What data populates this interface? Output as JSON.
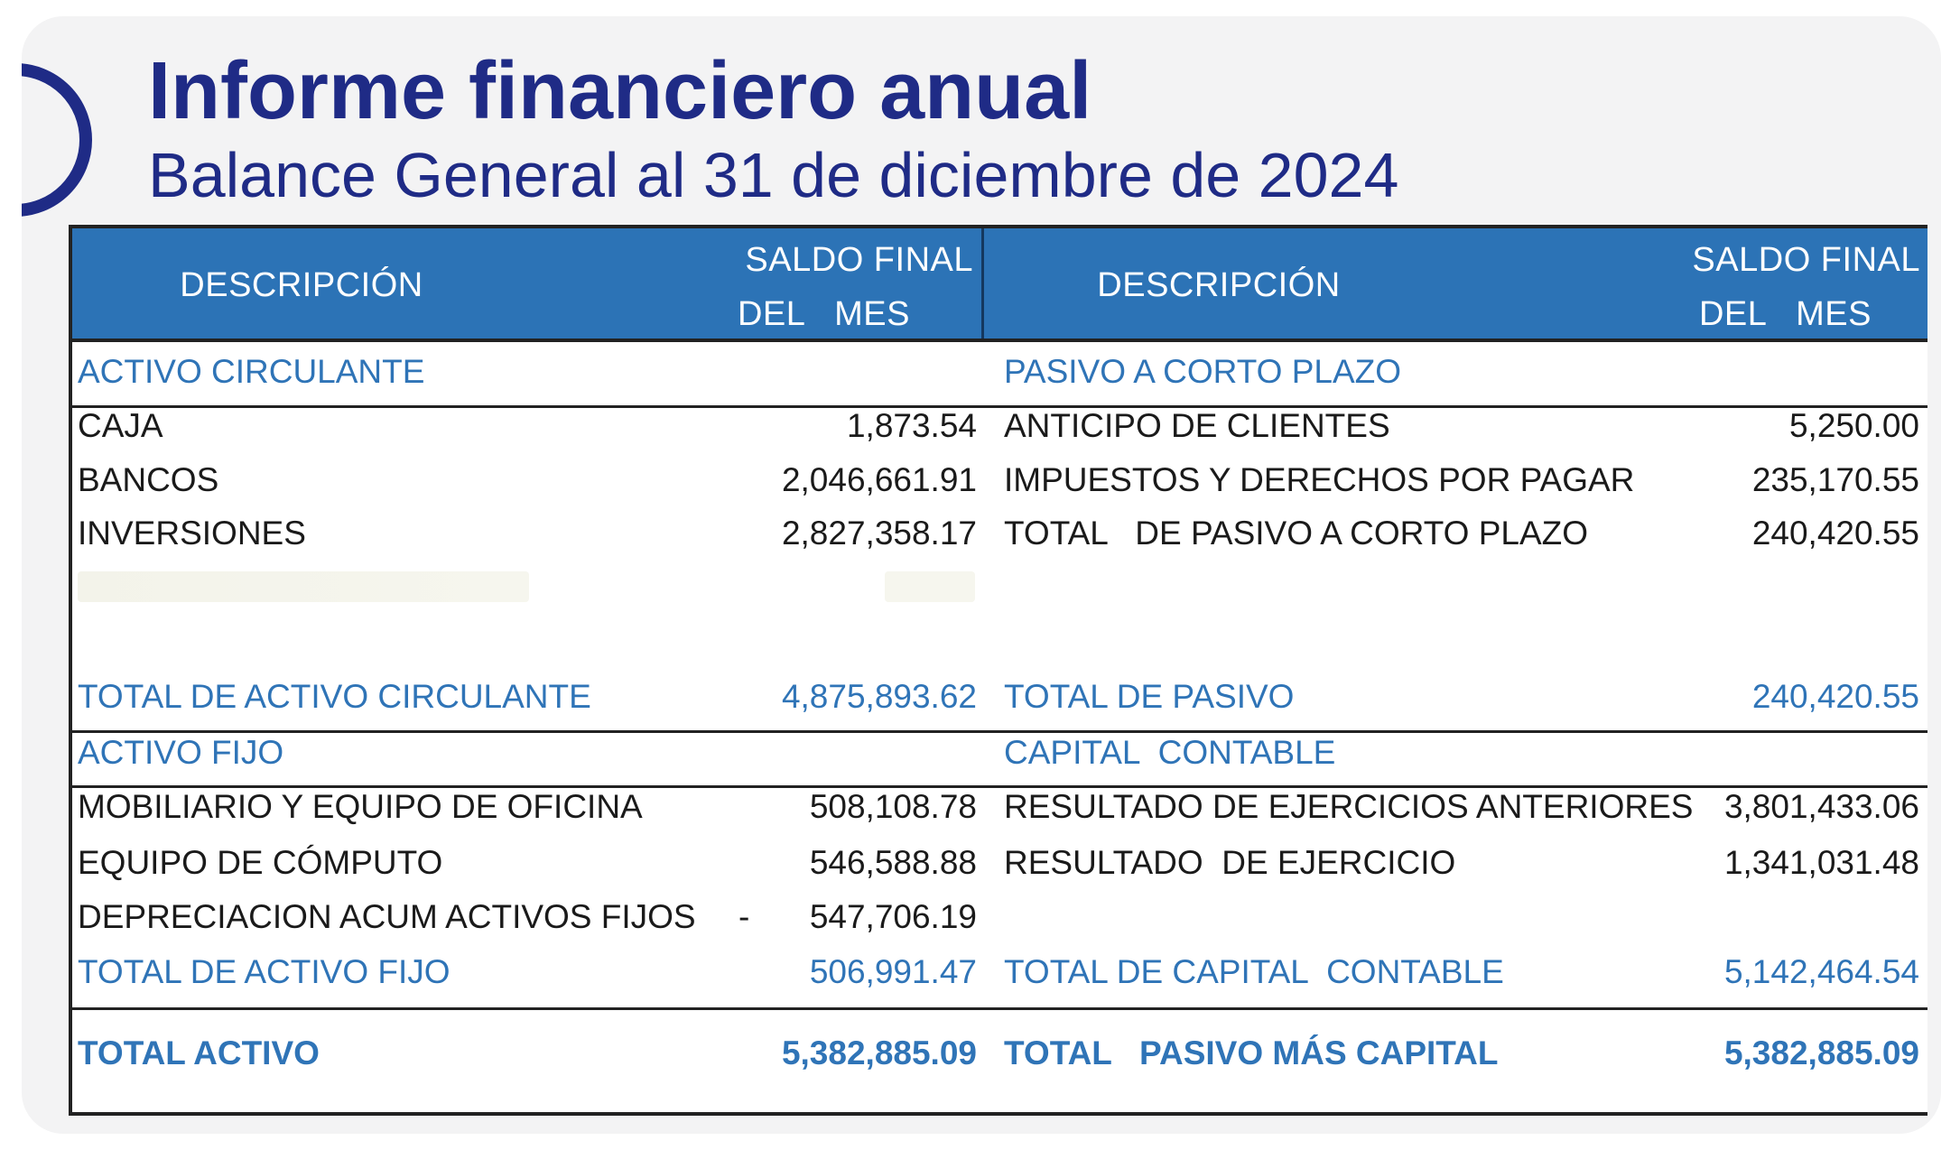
{
  "title": "Informe financiero anual",
  "subtitle": "Balance General al 31 de diciembre de 2024",
  "header": {
    "desc_left": "DESCRIPCIÓN",
    "saldo_left_1": "SALDO FINAL",
    "saldo_left_2": "DEL   MES",
    "desc_right": "DESCRIPCIÓN",
    "saldo_right_1": "SALDO FINAL",
    "saldo_right_2": "DEL   MES"
  },
  "left": {
    "section_circulante": "ACTIVO CIRCULANTE",
    "rows_circulante": [
      {
        "label": "CAJA",
        "value": "1,873.54"
      },
      {
        "label": "BANCOS",
        "value": "2,046,661.91"
      },
      {
        "label": "INVERSIONES",
        "value": "2,827,358.17"
      }
    ],
    "total_circulante": {
      "label": "TOTAL DE ACTIVO CIRCULANTE",
      "value": "4,875,893.62"
    },
    "section_fijo": "ACTIVO FIJO",
    "rows_fijo": [
      {
        "label": "MOBILIARIO Y EQUIPO DE OFICINA",
        "value": "508,108.78"
      },
      {
        "label": "EQUIPO DE CÓMPUTO",
        "value": "546,588.88"
      },
      {
        "label": "DEPRECIACION ACUM ACTIVOS FIJOS",
        "sign": "-",
        "value": "547,706.19"
      }
    ],
    "total_fijo": {
      "label": "TOTAL DE ACTIVO FIJO",
      "value": "506,991.47"
    },
    "grand_total": {
      "label": "TOTAL ACTIVO",
      "value": "5,382,885.09"
    }
  },
  "right": {
    "section_pasivo": "PASIVO A CORTO PLAZO",
    "rows_pasivo": [
      {
        "label": "ANTICIPO DE CLIENTES",
        "value": "5,250.00"
      },
      {
        "label": "IMPUESTOS Y DERECHOS POR PAGAR",
        "value": "235,170.55"
      },
      {
        "label": "TOTAL   DE PASIVO A CORTO PLAZO",
        "value": "240,420.55"
      }
    ],
    "total_pasivo": {
      "label": "TOTAL DE PASIVO",
      "value": "240,420.55"
    },
    "section_capital": "CAPITAL  CONTABLE",
    "rows_capital": [
      {
        "label": "RESULTADO DE EJERCICIOS ANTERIORES",
        "value": "3,801,433.06"
      },
      {
        "label": "RESULTADO  DE EJERCICIO",
        "value": "1,341,031.48"
      }
    ],
    "total_capital": {
      "label": "TOTAL DE CAPITAL  CONTABLE",
      "value": "5,142,464.54"
    },
    "grand_total": {
      "label": "TOTAL   PASIVO MÁS CAPITAL",
      "value": "5,382,885.09"
    }
  }
}
